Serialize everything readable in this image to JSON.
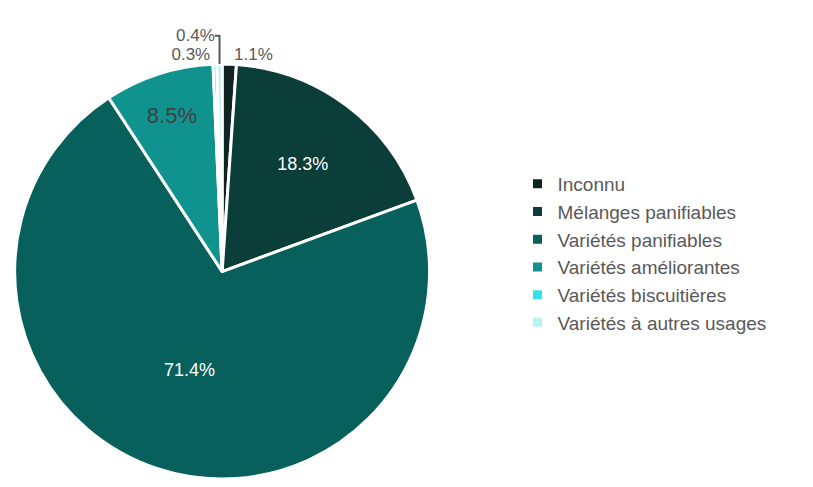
{
  "chart_data": {
    "type": "pie",
    "categories": [
      "Inconnu",
      "Mélanges panifiables",
      "Variétés panifiables",
      "Variétés améliorantes",
      "Variétés biscuitières",
      "Variétés à autres usages"
    ],
    "values": [
      1.1,
      18.3,
      71.4,
      8.5,
      0.3,
      0.4
    ],
    "value_labels": [
      "1.1%",
      "18.3%",
      "71.4%",
      "8.5%",
      "0.3%",
      "0.4%"
    ],
    "colors": [
      "#0f2322",
      "#0b3d39",
      "#07605c",
      "#10938f",
      "#33e3ea",
      "#b4f4f3"
    ],
    "data_labels": true,
    "legend": "right"
  }
}
